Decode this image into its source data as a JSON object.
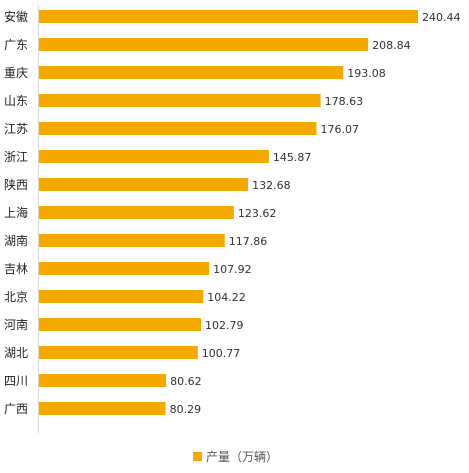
{
  "chart_data": {
    "type": "bar",
    "orientation": "horizontal",
    "categories": [
      "安徽",
      "广东",
      "重庆",
      "山东",
      "江苏",
      "浙江",
      "陕西",
      "上海",
      "湖南",
      "吉林",
      "北京",
      "河南",
      "湖北",
      "四川",
      "广西"
    ],
    "value_labels": [
      "240.44",
      "208.84",
      "193.08",
      "178.63",
      "176.07",
      "145.87",
      "132.68",
      "123.62",
      "117.86",
      "107.92",
      "104.22",
      "102.79",
      "100.77",
      "80.62",
      "80.29"
    ],
    "series": [
      {
        "name": "产量（万辆）",
        "color": "#F5A800",
        "values": [
          240.44,
          208.84,
          193.08,
          178.63,
          176.07,
          145.87,
          132.68,
          123.62,
          117.86,
          107.92,
          104.22,
          102.79,
          100.77,
          80.62,
          80.29
        ]
      }
    ],
    "title": "",
    "xlabel": "",
    "ylabel": "",
    "xlim": [
      0,
      240.44
    ],
    "grid": false,
    "legend": "bottom-center",
    "legend_label": "产量（万辆）"
  }
}
